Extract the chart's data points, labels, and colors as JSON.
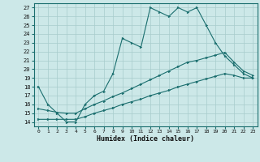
{
  "xlabel": "Humidex (Indice chaleur)",
  "bg_color": "#cce8e8",
  "grid_color": "#a8cccc",
  "line_color": "#1a6e6e",
  "xlim": [
    -0.5,
    23.5
  ],
  "ylim": [
    13.5,
    27.5
  ],
  "xticks": [
    0,
    1,
    2,
    3,
    4,
    5,
    6,
    7,
    8,
    9,
    10,
    11,
    12,
    13,
    14,
    15,
    16,
    17,
    18,
    19,
    20,
    21,
    22,
    23
  ],
  "yticks": [
    14,
    15,
    16,
    17,
    18,
    19,
    20,
    21,
    22,
    23,
    24,
    25,
    26,
    27
  ],
  "line1_x": [
    0,
    1,
    2,
    3,
    4,
    5,
    6,
    7,
    8,
    9,
    10,
    11,
    12,
    13,
    14,
    15,
    16,
    17,
    18,
    19,
    20,
    21,
    22,
    23
  ],
  "line1_y": [
    18,
    16,
    15,
    14,
    14,
    16,
    17,
    17.5,
    19.5,
    23.5,
    23,
    22.5,
    27,
    26.5,
    26,
    27,
    26.5,
    27,
    25,
    23,
    21.5,
    20.5,
    19.5,
    19
  ],
  "line2_x": [
    0,
    1,
    2,
    3,
    4,
    5,
    6,
    7,
    8,
    9,
    10,
    11,
    12,
    13,
    14,
    15,
    16,
    17,
    18,
    19,
    20,
    21,
    22,
    23
  ],
  "line2_y": [
    15.5,
    15.3,
    15.1,
    15.0,
    15.0,
    15.5,
    16.0,
    16.4,
    16.9,
    17.3,
    17.8,
    18.3,
    18.8,
    19.3,
    19.8,
    20.3,
    20.8,
    21.0,
    21.3,
    21.6,
    21.9,
    20.8,
    19.8,
    19.3
  ],
  "line3_x": [
    0,
    1,
    2,
    3,
    4,
    5,
    6,
    7,
    8,
    9,
    10,
    11,
    12,
    13,
    14,
    15,
    16,
    17,
    18,
    19,
    20,
    21,
    22,
    23
  ],
  "line3_y": [
    14.3,
    14.3,
    14.3,
    14.3,
    14.3,
    14.6,
    15.0,
    15.3,
    15.6,
    16.0,
    16.3,
    16.6,
    17.0,
    17.3,
    17.6,
    18.0,
    18.3,
    18.6,
    18.9,
    19.2,
    19.5,
    19.3,
    19.0,
    19.0
  ]
}
